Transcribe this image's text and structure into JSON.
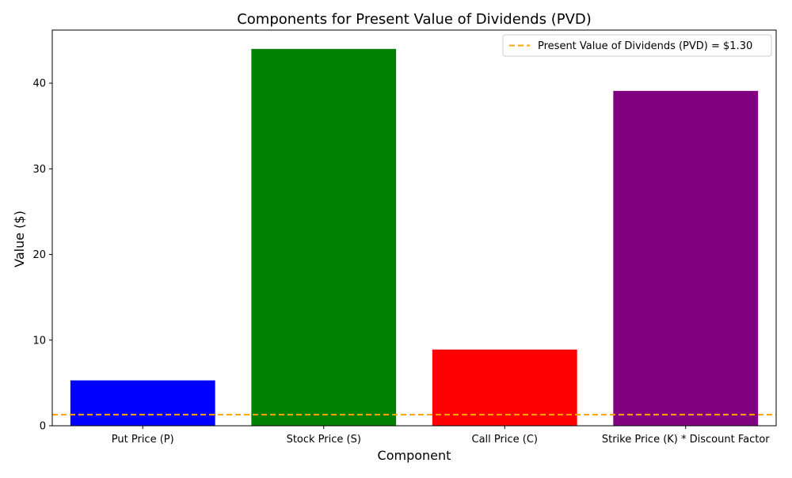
{
  "chart_data": {
    "type": "bar",
    "title": "Components for Present Value of Dividends (PVD)",
    "xlabel": "Component",
    "ylabel": "Value ($)",
    "categories": [
      "Put Price (P)",
      "Stock Price (S)",
      "Call Price (C)",
      "Strike Price (K) * Discount Factor"
    ],
    "values": [
      5.3,
      44.0,
      8.9,
      39.1
    ],
    "colors": [
      "#0000ff",
      "#008000",
      "#ff0000",
      "#800080"
    ],
    "ylim": [
      0,
      46.2
    ],
    "yticks": [
      0,
      10,
      20,
      30,
      40
    ],
    "grid": false,
    "reference_line": {
      "value": 1.3,
      "label": "Present Value of Dividends (PVD) = $1.30",
      "color": "#ffa500",
      "style": "dashed"
    },
    "legend_position": "top-right"
  }
}
